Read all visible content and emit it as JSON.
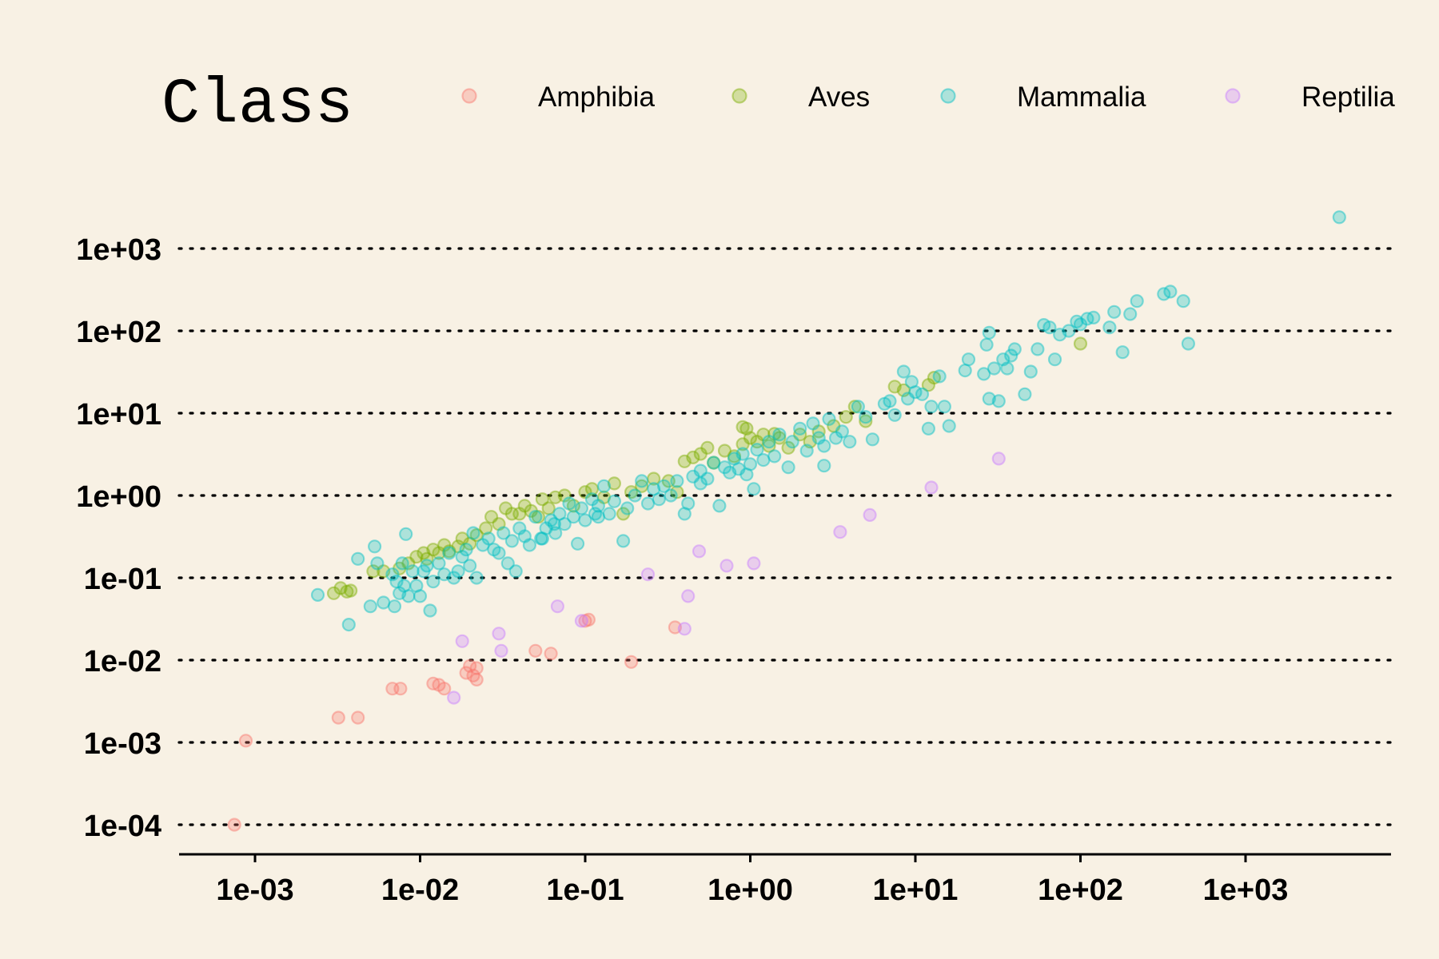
{
  "chart_data": {
    "type": "scatter",
    "title": "",
    "xlabel": "",
    "ylabel": "",
    "x_scale": "log10",
    "y_scale": "log10",
    "xlim": [
      0.0004,
      8000
    ],
    "ylim": [
      5e-05,
      7000
    ],
    "x_ticks": [
      "1e-03",
      "1e-02",
      "1e-01",
      "1e+00",
      "1e+01",
      "1e+02",
      "1e+03"
    ],
    "y_ticks": [
      "1e-04",
      "1e-03",
      "1e-02",
      "1e-01",
      "1e+00",
      "1e+01",
      "1e+02",
      "1e+03"
    ],
    "grid": "horizontal dotted",
    "legend": {
      "title": "Class",
      "placement": "top",
      "entries": [
        {
          "label": "Amphibia",
          "color": "#f8766d"
        },
        {
          "label": "Aves",
          "color": "#7cae00"
        },
        {
          "label": "Mammalia",
          "color": "#00bfc4"
        },
        {
          "label": "Reptilia",
          "color": "#c77cff"
        }
      ]
    },
    "series": [
      {
        "name": "Amphibia",
        "color": "#f8766d",
        "points": [
          [
            0.00075,
            0.0001
          ],
          [
            0.00088,
            0.00105
          ],
          [
            0.0032,
            0.002
          ],
          [
            0.0042,
            0.002
          ],
          [
            0.0068,
            0.0045
          ],
          [
            0.0076,
            0.0045
          ],
          [
            0.012,
            0.0052
          ],
          [
            0.013,
            0.005
          ],
          [
            0.014,
            0.0045
          ],
          [
            0.019,
            0.007
          ],
          [
            0.02,
            0.0085
          ],
          [
            0.021,
            0.0065
          ],
          [
            0.022,
            0.0058
          ],
          [
            0.022,
            0.008
          ],
          [
            0.05,
            0.013
          ],
          [
            0.062,
            0.012
          ],
          [
            0.1,
            0.03
          ],
          [
            0.105,
            0.031
          ],
          [
            0.19,
            0.0095
          ],
          [
            0.35,
            0.025
          ]
        ]
      },
      {
        "name": "Reptilia",
        "color": "#c77cff",
        "points": [
          [
            0.016,
            0.0035
          ],
          [
            0.018,
            0.017
          ],
          [
            0.03,
            0.021
          ],
          [
            0.031,
            0.013
          ],
          [
            0.068,
            0.045
          ],
          [
            0.095,
            0.03
          ],
          [
            0.24,
            0.11
          ],
          [
            0.4,
            0.024
          ],
          [
            0.42,
            0.06
          ],
          [
            0.49,
            0.21
          ],
          [
            0.72,
            0.14
          ],
          [
            1.05,
            0.15
          ],
          [
            3.5,
            0.36
          ],
          [
            5.3,
            0.58
          ],
          [
            12.5,
            1.25
          ],
          [
            32,
            2.8
          ]
        ]
      },
      {
        "name": "Aves",
        "color": "#7cae00",
        "points": [
          [
            0.003,
            0.065
          ],
          [
            0.0033,
            0.075
          ],
          [
            0.0036,
            0.068
          ],
          [
            0.0038,
            0.07
          ],
          [
            0.0052,
            0.12
          ],
          [
            0.006,
            0.12
          ],
          [
            0.0075,
            0.13
          ],
          [
            0.0085,
            0.15
          ],
          [
            0.0095,
            0.18
          ],
          [
            0.0105,
            0.2
          ],
          [
            0.011,
            0.17
          ],
          [
            0.012,
            0.22
          ],
          [
            0.013,
            0.2
          ],
          [
            0.014,
            0.25
          ],
          [
            0.015,
            0.21
          ],
          [
            0.017,
            0.24
          ],
          [
            0.018,
            0.3
          ],
          [
            0.02,
            0.26
          ],
          [
            0.022,
            0.33
          ],
          [
            0.025,
            0.4
          ],
          [
            0.027,
            0.55
          ],
          [
            0.03,
            0.45
          ],
          [
            0.033,
            0.7
          ],
          [
            0.036,
            0.6
          ],
          [
            0.04,
            0.6
          ],
          [
            0.043,
            0.75
          ],
          [
            0.047,
            0.65
          ],
          [
            0.052,
            0.55
          ],
          [
            0.055,
            0.9
          ],
          [
            0.06,
            0.7
          ],
          [
            0.066,
            0.95
          ],
          [
            0.075,
            1.0
          ],
          [
            0.085,
            0.75
          ],
          [
            0.1,
            1.1
          ],
          [
            0.11,
            1.2
          ],
          [
            0.13,
            0.95
          ],
          [
            0.15,
            1.4
          ],
          [
            0.17,
            0.6
          ],
          [
            0.19,
            1.1
          ],
          [
            0.22,
            1.3
          ],
          [
            0.26,
            1.6
          ],
          [
            0.32,
            1.5
          ],
          [
            0.36,
            1.1
          ],
          [
            0.4,
            2.6
          ],
          [
            0.45,
            2.9
          ],
          [
            0.5,
            3.2
          ],
          [
            0.55,
            3.8
          ],
          [
            0.6,
            2.5
          ],
          [
            0.7,
            3.5
          ],
          [
            0.8,
            3.0
          ],
          [
            0.9,
            4.2
          ],
          [
            0.95,
            6.5
          ],
          [
            1.0,
            5.0
          ],
          [
            1.1,
            4.5
          ],
          [
            1.2,
            5.5
          ],
          [
            1.3,
            4.0
          ],
          [
            1.5,
            5.0
          ],
          [
            1.7,
            3.8
          ],
          [
            2.0,
            5.5
          ],
          [
            2.3,
            4.5
          ],
          [
            2.6,
            6.0
          ],
          [
            3.2,
            7.0
          ],
          [
            3.8,
            9.0
          ],
          [
            4.3,
            12
          ],
          [
            5.0,
            8.0
          ],
          [
            7.5,
            21
          ],
          [
            8.5,
            19
          ],
          [
            12,
            22
          ],
          [
            13,
            27
          ],
          [
            100,
            70
          ],
          [
            0.9,
            6.8
          ],
          [
            1.4,
            5.6
          ]
        ]
      },
      {
        "name": "Mammalia",
        "color": "#00bfc4",
        "points": [
          [
            0.0024,
            0.062
          ],
          [
            0.0037,
            0.027
          ],
          [
            0.0042,
            0.17
          ],
          [
            0.005,
            0.045
          ],
          [
            0.0053,
            0.24
          ],
          [
            0.0055,
            0.15
          ],
          [
            0.006,
            0.05
          ],
          [
            0.0068,
            0.11
          ],
          [
            0.007,
            0.045
          ],
          [
            0.0072,
            0.09
          ],
          [
            0.0075,
            0.065
          ],
          [
            0.0078,
            0.15
          ],
          [
            0.008,
            0.08
          ],
          [
            0.0082,
            0.34
          ],
          [
            0.0085,
            0.06
          ],
          [
            0.009,
            0.12
          ],
          [
            0.0095,
            0.08
          ],
          [
            0.01,
            0.06
          ],
          [
            0.0105,
            0.12
          ],
          [
            0.011,
            0.14
          ],
          [
            0.0115,
            0.04
          ],
          [
            0.012,
            0.09
          ],
          [
            0.013,
            0.15
          ],
          [
            0.014,
            0.11
          ],
          [
            0.015,
            0.2
          ],
          [
            0.016,
            0.1
          ],
          [
            0.017,
            0.12
          ],
          [
            0.018,
            0.18
          ],
          [
            0.019,
            0.22
          ],
          [
            0.02,
            0.14
          ],
          [
            0.021,
            0.35
          ],
          [
            0.022,
            0.1
          ],
          [
            0.024,
            0.25
          ],
          [
            0.026,
            0.3
          ],
          [
            0.028,
            0.22
          ],
          [
            0.03,
            0.2
          ],
          [
            0.032,
            0.35
          ],
          [
            0.034,
            0.15
          ],
          [
            0.036,
            0.28
          ],
          [
            0.038,
            0.12
          ],
          [
            0.04,
            0.4
          ],
          [
            0.043,
            0.32
          ],
          [
            0.046,
            0.25
          ],
          [
            0.05,
            0.55
          ],
          [
            0.054,
            0.3
          ],
          [
            0.058,
            0.4
          ],
          [
            0.062,
            0.5
          ],
          [
            0.066,
            0.35
          ],
          [
            0.07,
            0.6
          ],
          [
            0.075,
            0.45
          ],
          [
            0.08,
            0.8
          ],
          [
            0.085,
            0.55
          ],
          [
            0.09,
            0.26
          ],
          [
            0.095,
            0.7
          ],
          [
            0.1,
            0.5
          ],
          [
            0.11,
            0.9
          ],
          [
            0.115,
            0.6
          ],
          [
            0.12,
            0.75
          ],
          [
            0.13,
            1.3
          ],
          [
            0.14,
            0.6
          ],
          [
            0.15,
            0.85
          ],
          [
            0.17,
            0.28
          ],
          [
            0.18,
            0.7
          ],
          [
            0.2,
            1.0
          ],
          [
            0.22,
            1.5
          ],
          [
            0.24,
            0.8
          ],
          [
            0.26,
            1.2
          ],
          [
            0.28,
            0.9
          ],
          [
            0.3,
            1.3
          ],
          [
            0.33,
            1.0
          ],
          [
            0.36,
            1.5
          ],
          [
            0.4,
            0.6
          ],
          [
            0.42,
            0.8
          ],
          [
            0.45,
            1.7
          ],
          [
            0.5,
            2.0
          ],
          [
            0.55,
            1.6
          ],
          [
            0.6,
            2.5
          ],
          [
            0.65,
            0.75
          ],
          [
            0.7,
            2.2
          ],
          [
            0.75,
            1.9
          ],
          [
            0.8,
            2.8
          ],
          [
            0.85,
            2.1
          ],
          [
            0.9,
            3.2
          ],
          [
            1.0,
            2.4
          ],
          [
            1.05,
            1.2
          ],
          [
            1.1,
            3.6
          ],
          [
            1.2,
            2.7
          ],
          [
            1.3,
            4.5
          ],
          [
            1.4,
            3.0
          ],
          [
            1.5,
            5.5
          ],
          [
            1.7,
            2.2
          ],
          [
            1.8,
            4.5
          ],
          [
            2.0,
            6.5
          ],
          [
            2.2,
            3.5
          ],
          [
            2.4,
            7.5
          ],
          [
            2.6,
            5.0
          ],
          [
            2.8,
            2.3
          ],
          [
            3.0,
            8.5
          ],
          [
            3.3,
            5.0
          ],
          [
            3.6,
            6.0
          ],
          [
            4.0,
            4.5
          ],
          [
            4.5,
            12
          ],
          [
            5.0,
            9.0
          ],
          [
            5.5,
            4.8
          ],
          [
            6.5,
            13
          ],
          [
            7.5,
            9.5
          ],
          [
            8.5,
            32
          ],
          [
            9.0,
            15
          ],
          [
            9.5,
            24
          ],
          [
            10,
            18
          ],
          [
            11,
            17
          ],
          [
            12,
            6.5
          ],
          [
            12.5,
            12
          ],
          [
            14,
            28
          ],
          [
            15,
            12
          ],
          [
            16,
            7.0
          ],
          [
            20,
            33
          ],
          [
            21,
            45
          ],
          [
            26,
            30
          ],
          [
            27,
            68
          ],
          [
            28,
            95
          ],
          [
            28,
            15
          ],
          [
            30,
            35
          ],
          [
            32,
            14
          ],
          [
            34,
            45
          ],
          [
            36,
            35
          ],
          [
            38,
            50
          ],
          [
            40,
            60
          ],
          [
            46,
            17
          ],
          [
            50,
            32
          ],
          [
            55,
            60
          ],
          [
            60,
            118
          ],
          [
            65,
            110
          ],
          [
            70,
            45
          ],
          [
            75,
            90
          ],
          [
            85,
            100
          ],
          [
            95,
            130
          ],
          [
            100,
            120
          ],
          [
            110,
            140
          ],
          [
            120,
            145
          ],
          [
            150,
            110
          ],
          [
            160,
            170
          ],
          [
            180,
            55
          ],
          [
            200,
            160
          ],
          [
            220,
            230
          ],
          [
            320,
            280
          ],
          [
            350,
            300
          ],
          [
            420,
            230
          ],
          [
            450,
            70
          ],
          [
            3700,
            2400
          ],
          [
            0.055,
            0.3
          ],
          [
            0.065,
            0.45
          ],
          [
            0.12,
            0.55
          ],
          [
            0.5,
            1.4
          ],
          [
            0.95,
            1.8
          ],
          [
            2.8,
            4.0
          ],
          [
            7.0,
            14
          ]
        ]
      }
    ]
  }
}
